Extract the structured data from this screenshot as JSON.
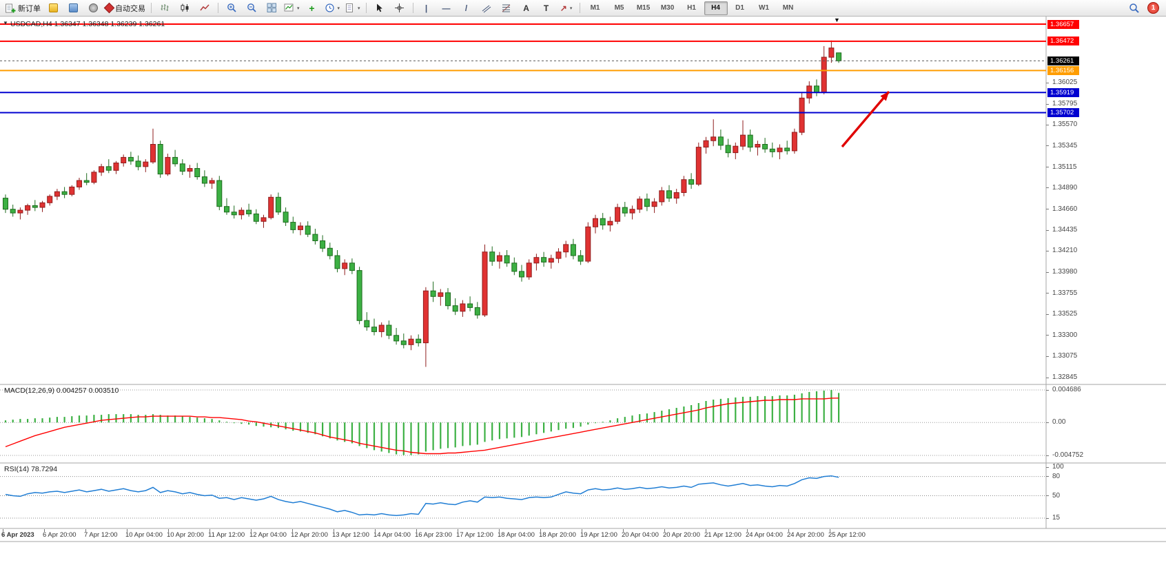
{
  "toolbar": {
    "new_order_label": "新订单",
    "auto_trading_label": "自动交易",
    "timeframes": [
      "M1",
      "M5",
      "M15",
      "M30",
      "H1",
      "H4",
      "D1",
      "W1",
      "MN"
    ],
    "active_timeframe": "H4",
    "notification_count": "1"
  },
  "icons": {
    "one_click_toggle": "▼",
    "chart_shift": "▼",
    "caret": "▾",
    "plus": "+",
    "vertical_line": "|",
    "horizontal_line": "—",
    "trendline": "/",
    "text_tool": "A",
    "label_tool": "T",
    "arrows_tool": "↗"
  },
  "chart": {
    "title": "USDCAD,H4 1.36347 1.36348 1.36239 1.36261",
    "current_price": "1.36261",
    "axis_ticks": [
      "1.36025",
      "1.35795",
      "1.35570",
      "1.35345",
      "1.35115",
      "1.34890",
      "1.34660",
      "1.34435",
      "1.34210",
      "1.33980",
      "1.33755",
      "1.33525",
      "1.33300",
      "1.33075",
      "1.32845"
    ],
    "time_ticks": [
      "6 Apr 2023",
      "6 Apr 20:00",
      "7 Apr 12:00",
      "10 Apr 04:00",
      "10 Apr 20:00",
      "11 Apr 12:00",
      "12 Apr 04:00",
      "12 Apr 20:00",
      "13 Apr 12:00",
      "14 Apr 04:00",
      "16 Apr 23:00",
      "17 Apr 12:00",
      "18 Apr 04:00",
      "18 Apr 20:00",
      "19 Apr 12:00",
      "20 Apr 04:00",
      "20 Apr 20:00",
      "21 Apr 12:00",
      "24 Apr 04:00",
      "24 Apr 20:00",
      "25 Apr 12:00"
    ]
  },
  "macd": {
    "title": "MACD(12,26,9) 0.004257 0.003510",
    "axis": [
      "0.004686",
      "0.00",
      "-0.004752"
    ]
  },
  "rsi": {
    "title": "RSI(14) 78.7294",
    "axis_ticks": [
      "100",
      "80",
      "50",
      "15"
    ]
  },
  "colors": {
    "bull": "#e03232",
    "bear": "#3cb043",
    "bull_dark": "#8f1d1d",
    "bear_dark": "#1d6b1d",
    "macd_hist": "#3cb043",
    "macd_signal": "#ff0000",
    "rsi_line": "#1f7dd4",
    "level_red": "#ff0000",
    "level_orange": "#ff9d00",
    "level_blue": "#0000d0",
    "current_price_bg": "#000000",
    "arrow": "#e00000"
  },
  "chart_data": {
    "type": "candlestick",
    "title": "USDCAD,H4",
    "ylim": [
      1.32845,
      1.36657
    ],
    "candles": [
      [
        1.3478,
        1.3482,
        1.3462,
        1.3466
      ],
      [
        1.3466,
        1.3471,
        1.3458,
        1.3462
      ],
      [
        1.3462,
        1.3468,
        1.3455,
        1.3465
      ],
      [
        1.3465,
        1.3472,
        1.346,
        1.347
      ],
      [
        1.347,
        1.3476,
        1.3464,
        1.3468
      ],
      [
        1.3468,
        1.3475,
        1.3463,
        1.3473
      ],
      [
        1.3473,
        1.3482,
        1.347,
        1.348
      ],
      [
        1.348,
        1.3488,
        1.3476,
        1.3485
      ],
      [
        1.3485,
        1.349,
        1.3478,
        1.3482
      ],
      [
        1.3482,
        1.3492,
        1.348,
        1.349
      ],
      [
        1.349,
        1.35,
        1.3487,
        1.3497
      ],
      [
        1.3497,
        1.3505,
        1.3492,
        1.3495
      ],
      [
        1.3495,
        1.3508,
        1.3493,
        1.3506
      ],
      [
        1.3506,
        1.3515,
        1.3502,
        1.3512
      ],
      [
        1.3512,
        1.352,
        1.3505,
        1.3508
      ],
      [
        1.3508,
        1.3518,
        1.3504,
        1.3516
      ],
      [
        1.3516,
        1.3525,
        1.3512,
        1.3522
      ],
      [
        1.3522,
        1.3528,
        1.3514,
        1.3518
      ],
      [
        1.3518,
        1.3524,
        1.3508,
        1.3512
      ],
      [
        1.3512,
        1.352,
        1.3506,
        1.3517
      ],
      [
        1.3517,
        1.3553,
        1.3515,
        1.3536
      ],
      [
        1.3536,
        1.354,
        1.35,
        1.3504
      ],
      [
        1.3504,
        1.3526,
        1.3502,
        1.3522
      ],
      [
        1.3522,
        1.353,
        1.3512,
        1.3515
      ],
      [
        1.3515,
        1.352,
        1.3503,
        1.3507
      ],
      [
        1.3507,
        1.3514,
        1.35,
        1.351
      ],
      [
        1.351,
        1.3516,
        1.3498,
        1.3501
      ],
      [
        1.3501,
        1.3508,
        1.349,
        1.3494
      ],
      [
        1.3494,
        1.35,
        1.3488,
        1.3497
      ],
      [
        1.3497,
        1.3502,
        1.3465,
        1.3469
      ],
      [
        1.3469,
        1.3478,
        1.346,
        1.3463
      ],
      [
        1.3463,
        1.347,
        1.3456,
        1.346
      ],
      [
        1.346,
        1.3468,
        1.3455,
        1.3465
      ],
      [
        1.3465,
        1.3472,
        1.3458,
        1.3461
      ],
      [
        1.3461,
        1.3466,
        1.345,
        1.3453
      ],
      [
        1.3453,
        1.346,
        1.3446,
        1.3457
      ],
      [
        1.3457,
        1.3482,
        1.3455,
        1.3479
      ],
      [
        1.3479,
        1.3484,
        1.346,
        1.3463
      ],
      [
        1.3463,
        1.3468,
        1.3448,
        1.3452
      ],
      [
        1.3452,
        1.3458,
        1.344,
        1.3444
      ],
      [
        1.3444,
        1.3452,
        1.3438,
        1.3448
      ],
      [
        1.3448,
        1.3453,
        1.3436,
        1.3439
      ],
      [
        1.3439,
        1.3445,
        1.3428,
        1.3432
      ],
      [
        1.3432,
        1.3438,
        1.342,
        1.3424
      ],
      [
        1.3424,
        1.343,
        1.3412,
        1.3416
      ],
      [
        1.3416,
        1.3422,
        1.3398,
        1.3402
      ],
      [
        1.3402,
        1.3412,
        1.3395,
        1.3408
      ],
      [
        1.3408,
        1.3413,
        1.3396,
        1.34
      ],
      [
        1.34,
        1.3404,
        1.3342,
        1.3346
      ],
      [
        1.3346,
        1.3355,
        1.3335,
        1.3339
      ],
      [
        1.3339,
        1.3348,
        1.333,
        1.3334
      ],
      [
        1.3334,
        1.3344,
        1.3328,
        1.3341
      ],
      [
        1.3341,
        1.3346,
        1.3326,
        1.333
      ],
      [
        1.333,
        1.3338,
        1.332,
        1.3324
      ],
      [
        1.3324,
        1.3332,
        1.3316,
        1.332
      ],
      [
        1.332,
        1.333,
        1.3314,
        1.3326
      ],
      [
        1.3326,
        1.3331,
        1.3318,
        1.3322
      ],
      [
        1.3322,
        1.3382,
        1.3296,
        1.3378
      ],
      [
        1.3378,
        1.3388,
        1.3366,
        1.3372
      ],
      [
        1.3372,
        1.338,
        1.3362,
        1.3376
      ],
      [
        1.3376,
        1.3381,
        1.3358,
        1.3362
      ],
      [
        1.3362,
        1.337,
        1.3352,
        1.3356
      ],
      [
        1.3356,
        1.3368,
        1.335,
        1.3364
      ],
      [
        1.3364,
        1.3372,
        1.3356,
        1.336
      ],
      [
        1.336,
        1.3366,
        1.3348,
        1.3352
      ],
      [
        1.3352,
        1.3428,
        1.335,
        1.342
      ],
      [
        1.342,
        1.3426,
        1.3405,
        1.341
      ],
      [
        1.341,
        1.342,
        1.3402,
        1.3416
      ],
      [
        1.3416,
        1.3422,
        1.3404,
        1.3408
      ],
      [
        1.3408,
        1.3414,
        1.3395,
        1.3399
      ],
      [
        1.3399,
        1.3406,
        1.3388,
        1.3393
      ],
      [
        1.3393,
        1.3412,
        1.339,
        1.3408
      ],
      [
        1.3408,
        1.3418,
        1.34,
        1.3414
      ],
      [
        1.3414,
        1.342,
        1.3404,
        1.3409
      ],
      [
        1.3409,
        1.3417,
        1.3402,
        1.3413
      ],
      [
        1.3413,
        1.3424,
        1.3408,
        1.342
      ],
      [
        1.342,
        1.3432,
        1.3414,
        1.3428
      ],
      [
        1.3428,
        1.3434,
        1.3412,
        1.3416
      ],
      [
        1.3416,
        1.3422,
        1.3406,
        1.341
      ],
      [
        1.341,
        1.3452,
        1.3408,
        1.3447
      ],
      [
        1.3447,
        1.346,
        1.344,
        1.3456
      ],
      [
        1.3456,
        1.3462,
        1.3444,
        1.3449
      ],
      [
        1.3449,
        1.3458,
        1.3442,
        1.3453
      ],
      [
        1.3453,
        1.3472,
        1.345,
        1.3468
      ],
      [
        1.3468,
        1.3474,
        1.3458,
        1.3462
      ],
      [
        1.3462,
        1.347,
        1.3455,
        1.3466
      ],
      [
        1.3466,
        1.348,
        1.3462,
        1.3477
      ],
      [
        1.3477,
        1.3483,
        1.3464,
        1.3469
      ],
      [
        1.3469,
        1.3478,
        1.3462,
        1.3474
      ],
      [
        1.3474,
        1.349,
        1.347,
        1.3486
      ],
      [
        1.3486,
        1.3492,
        1.3474,
        1.3478
      ],
      [
        1.3478,
        1.3488,
        1.3472,
        1.3484
      ],
      [
        1.3484,
        1.3502,
        1.348,
        1.3498
      ],
      [
        1.3498,
        1.3505,
        1.3488,
        1.3493
      ],
      [
        1.3493,
        1.3538,
        1.3491,
        1.3533
      ],
      [
        1.3533,
        1.3544,
        1.3526,
        1.354
      ],
      [
        1.354,
        1.3563,
        1.3534,
        1.3544
      ],
      [
        1.3544,
        1.3552,
        1.353,
        1.3535
      ],
      [
        1.3535,
        1.3542,
        1.3522,
        1.3527
      ],
      [
        1.3527,
        1.3538,
        1.352,
        1.3534
      ],
      [
        1.3534,
        1.3562,
        1.353,
        1.3546
      ],
      [
        1.3546,
        1.3552,
        1.3528,
        1.3533
      ],
      [
        1.3533,
        1.354,
        1.3524,
        1.3536
      ],
      [
        1.3536,
        1.3543,
        1.3527,
        1.3531
      ],
      [
        1.3531,
        1.3538,
        1.3522,
        1.3528
      ],
      [
        1.3528,
        1.3536,
        1.352,
        1.3532
      ],
      [
        1.3532,
        1.354,
        1.3525,
        1.3529
      ],
      [
        1.3529,
        1.3553,
        1.3526,
        1.3549
      ],
      [
        1.3549,
        1.3592,
        1.3546,
        1.3586
      ],
      [
        1.3586,
        1.3604,
        1.358,
        1.3599
      ],
      [
        1.3599,
        1.3606,
        1.3588,
        1.3592
      ],
      [
        1.3592,
        1.3642,
        1.359,
        1.363
      ],
      [
        1.363,
        1.3648,
        1.3624,
        1.364
      ],
      [
        1.36347,
        1.36348,
        1.36239,
        1.36261
      ]
    ],
    "levels": [
      {
        "price": 1.36657,
        "label": "1.36657",
        "color": "#ff0000"
      },
      {
        "price": 1.36472,
        "label": "1.36472",
        "color": "#ff0000"
      },
      {
        "price": 1.36156,
        "label": "1.36156",
        "color": "#ff9d00"
      },
      {
        "price": 1.35919,
        "label": "1.35919",
        "color": "#0000d0"
      },
      {
        "price": 1.35702,
        "label": "1.35702",
        "color": "#0000d0"
      }
    ],
    "indicators": {
      "macd": {
        "params": "12,26,9",
        "value": 0.004257,
        "signal_value": 0.00351,
        "ylim": [
          -0.004752,
          0.004686
        ],
        "histogram": [
          0.0003,
          0.0004,
          0.0005,
          0.0005,
          0.0006,
          0.0006,
          0.0007,
          0.0008,
          0.0008,
          0.0009,
          0.001,
          0.001,
          0.0011,
          0.0011,
          0.0012,
          0.0012,
          0.0012,
          0.0012,
          0.0011,
          0.0011,
          0.0012,
          0.0011,
          0.001,
          0.001,
          0.0009,
          0.0008,
          0.0007,
          0.0006,
          0.0005,
          0.0003,
          0.0001,
          -0.0001,
          -0.0002,
          -0.0003,
          -0.0005,
          -0.0006,
          -0.0007,
          -0.0008,
          -0.001,
          -0.0012,
          -0.0013,
          -0.0015,
          -0.0017,
          -0.002,
          -0.0023,
          -0.0026,
          -0.0028,
          -0.003,
          -0.0034,
          -0.0037,
          -0.004,
          -0.0042,
          -0.0044,
          -0.0046,
          -0.0047,
          -0.0047,
          -0.0046,
          -0.0042,
          -0.004,
          -0.0038,
          -0.0037,
          -0.0036,
          -0.0034,
          -0.0033,
          -0.0032,
          -0.0028,
          -0.0026,
          -0.0024,
          -0.0023,
          -0.0022,
          -0.0021,
          -0.0019,
          -0.0017,
          -0.0015,
          -0.0013,
          -0.0011,
          -0.0009,
          -0.0008,
          -0.0006,
          -0.0003,
          -0.0001,
          0.0001,
          0.0003,
          0.0006,
          0.0008,
          0.001,
          0.0012,
          0.0013,
          0.0015,
          0.0017,
          0.0019,
          0.0021,
          0.0023,
          0.0025,
          0.0028,
          0.0031,
          0.0033,
          0.0034,
          0.0035,
          0.0036,
          0.0037,
          0.0037,
          0.0038,
          0.0038,
          0.0038,
          0.0039,
          0.0039,
          0.004,
          0.0042,
          0.0044,
          0.0045,
          0.0046,
          0.004686,
          0.004257
        ],
        "signal": [
          -0.0035,
          -0.0031,
          -0.0027,
          -0.0023,
          -0.0019,
          -0.0016,
          -0.0013,
          -0.001,
          -0.0007,
          -0.0005,
          -0.0003,
          -0.0001,
          0.0001,
          0.0003,
          0.0004,
          0.0005,
          0.0006,
          0.0007,
          0.0008,
          0.0008,
          0.0009,
          0.0009,
          0.0009,
          0.0009,
          0.0009,
          0.0009,
          0.0008,
          0.0008,
          0.0007,
          0.0007,
          0.0006,
          0.0005,
          0.0004,
          0.0002,
          0.0001,
          -0.0001,
          -0.0003,
          -0.0005,
          -0.0007,
          -0.0009,
          -0.0011,
          -0.0013,
          -0.0015,
          -0.0018,
          -0.0021,
          -0.0023,
          -0.0025,
          -0.0027,
          -0.003,
          -0.0032,
          -0.0034,
          -0.0036,
          -0.0038,
          -0.004,
          -0.0041,
          -0.0043,
          -0.0044,
          -0.0045,
          -0.0045,
          -0.0045,
          -0.0044,
          -0.0044,
          -0.0043,
          -0.0042,
          -0.0041,
          -0.004,
          -0.0038,
          -0.0036,
          -0.0034,
          -0.0032,
          -0.003,
          -0.0028,
          -0.0026,
          -0.0024,
          -0.0022,
          -0.002,
          -0.0018,
          -0.0016,
          -0.0014,
          -0.0012,
          -0.001,
          -0.0008,
          -0.0006,
          -0.0004,
          -0.0002,
          0.0,
          0.0002,
          0.0004,
          0.0006,
          0.0008,
          0.001,
          0.0012,
          0.0014,
          0.0016,
          0.0018,
          0.0021,
          0.0023,
          0.0025,
          0.0027,
          0.0028,
          0.0029,
          0.003,
          0.0031,
          0.0032,
          0.0032,
          0.0033,
          0.0033,
          0.0033,
          0.0034,
          0.0034,
          0.0034,
          0.0034,
          0.0035,
          0.00351
        ]
      },
      "rsi": {
        "params": "14",
        "value": 78.7294,
        "ylim": [
          0,
          100
        ],
        "levels": [
          80,
          50,
          15
        ],
        "values": [
          52,
          50,
          49,
          53,
          55,
          54,
          56,
          57,
          55,
          57,
          59,
          56,
          58,
          60,
          57,
          59,
          61,
          58,
          56,
          58,
          63,
          55,
          58,
          56,
          53,
          55,
          52,
          50,
          51,
          46,
          47,
          44,
          47,
          45,
          43,
          45,
          49,
          44,
          41,
          39,
          41,
          38,
          35,
          32,
          29,
          25,
          27,
          24,
          20,
          21,
          20,
          22,
          20,
          19,
          20,
          22,
          21,
          38,
          37,
          39,
          37,
          36,
          40,
          42,
          40,
          48,
          47,
          48,
          46,
          45,
          44,
          47,
          48,
          47,
          48,
          52,
          56,
          54,
          53,
          59,
          61,
          59,
          60,
          62,
          60,
          61,
          63,
          61,
          62,
          64,
          62,
          63,
          65,
          63,
          68,
          69,
          70,
          67,
          65,
          67,
          69,
          66,
          67,
          65,
          64,
          66,
          65,
          69,
          75,
          78,
          77,
          80,
          81,
          78.73
        ]
      }
    },
    "annotations": [
      {
        "type": "arrow",
        "from": [
          1222,
          213
        ],
        "to": [
          1290,
          133
        ],
        "color": "#e00000"
      }
    ]
  }
}
